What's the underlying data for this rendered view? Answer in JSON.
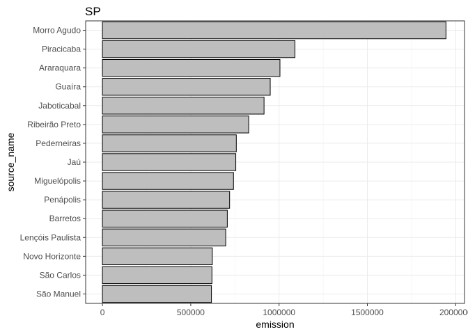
{
  "chart_data": {
    "type": "bar",
    "orientation": "horizontal",
    "title": "SP",
    "xlabel": "emission",
    "ylabel": "source_name",
    "categories": [
      "Morro Agudo",
      "Piracicaba",
      "Araraquara",
      "Guaíra",
      "Jaboticabal",
      "Ribeirão Preto",
      "Pederneiras",
      "Jaú",
      "Miguelópolis",
      "Penápolis",
      "Barretos",
      "Lençóis Paulista",
      "Novo Horizonte",
      "São Carlos",
      "São Manuel"
    ],
    "values": [
      1945000,
      1090000,
      1005000,
      950000,
      915000,
      828000,
      758000,
      755000,
      742000,
      720000,
      707000,
      698000,
      622000,
      620000,
      617000
    ],
    "xlim": [
      -95000,
      2050000
    ],
    "xticks": [
      0,
      500000,
      1000000,
      1500000,
      2000000
    ],
    "xtick_labels": [
      "0",
      "500000",
      "1000000",
      "1500000",
      "2000000"
    ],
    "bar_fill": "#bebebe",
    "bar_stroke": "#000000",
    "grid": true,
    "theme": "bw"
  }
}
